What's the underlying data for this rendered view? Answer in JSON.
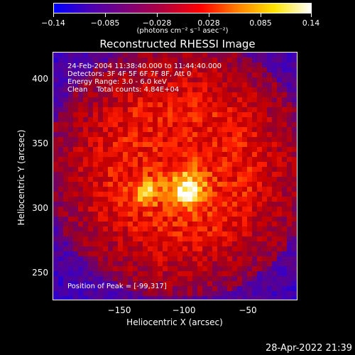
{
  "colorbar": {
    "ticks": [
      "−0.14",
      "−0.085",
      "−0.028",
      "0.028",
      "0.085",
      "0.14"
    ],
    "units": "(photons cm⁻² s⁻¹ asec⁻²)",
    "colors": [
      "#0000ff",
      "#4b00b4",
      "#7f0078",
      "#b4003c",
      "#ff0000",
      "#ff8000",
      "#ffe400",
      "#ffffff"
    ]
  },
  "plot": {
    "title": "Reconstructed RHESSI Image",
    "info_lines": [
      "24-Feb-2004 11:38:40.000 to 11:44:40.000",
      "Detectors: 3F 4F 5F 6F 7F 8F, Att 0",
      "Energy Range: 3.0 - 6.0 keV",
      "Clean    Total counts: 4.84E+04"
    ],
    "peak_label": "Position of Peak = [-99,317]",
    "xlabel": "Heliocentric X (arcsec)",
    "ylabel": "Heliocentric Y (arcsec)",
    "xticks": [
      "−150",
      "−100",
      "−50"
    ],
    "yticks": [
      "400",
      "350",
      "300",
      "250"
    ]
  },
  "footer": {
    "timestamp": "28-Apr-2022 21:39"
  }
}
